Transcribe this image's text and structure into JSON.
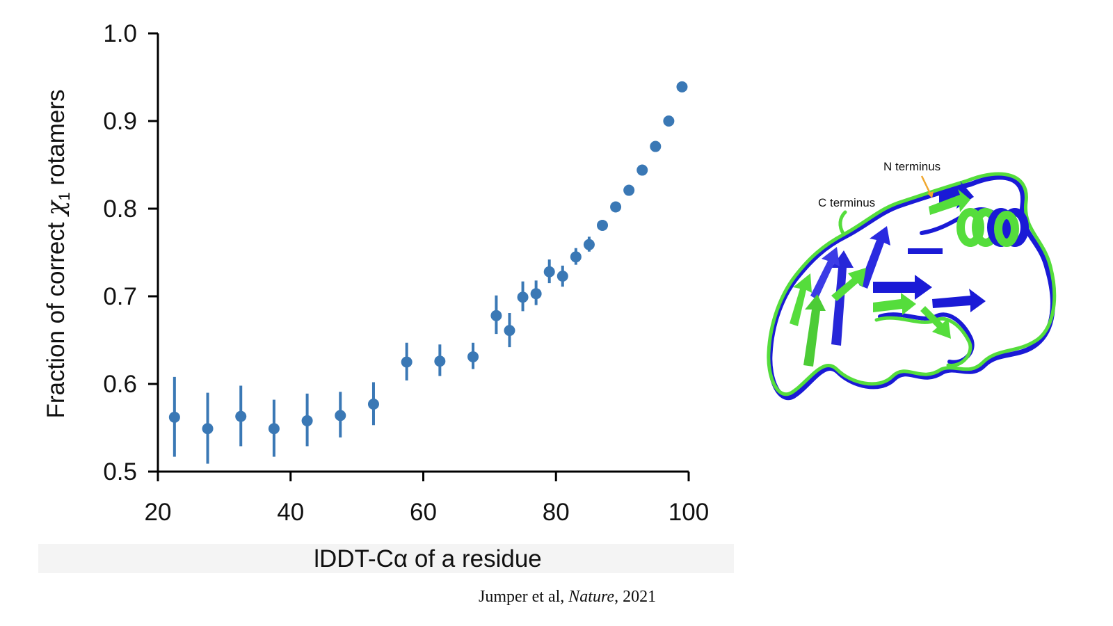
{
  "chart_data": {
    "type": "scatter",
    "xlabel_parts": [
      "lDDT-C",
      "α",
      " of a residue"
    ],
    "ylabel_parts": [
      "Fraction of correct ",
      "χ",
      "1",
      " rotamers"
    ],
    "xlim": [
      20,
      100
    ],
    "ylim": [
      0.5,
      1.0
    ],
    "xticks": [
      "20",
      "40",
      "60",
      "80",
      "100"
    ],
    "yticks": [
      "0.5",
      "0.6",
      "0.7",
      "0.8",
      "0.9",
      "1.0"
    ],
    "xtick_values": [
      20,
      40,
      60,
      80,
      100
    ],
    "ytick_values": [
      0.5,
      0.6,
      0.7,
      0.8,
      0.9,
      1.0
    ],
    "grid": false,
    "marker_color": "#3a78b5",
    "points": [
      {
        "x": 22.5,
        "y": 0.562,
        "lo": 0.517,
        "hi": 0.608
      },
      {
        "x": 27.5,
        "y": 0.549,
        "lo": 0.509,
        "hi": 0.59
      },
      {
        "x": 32.5,
        "y": 0.563,
        "lo": 0.529,
        "hi": 0.598
      },
      {
        "x": 37.5,
        "y": 0.549,
        "lo": 0.517,
        "hi": 0.582
      },
      {
        "x": 42.5,
        "y": 0.558,
        "lo": 0.529,
        "hi": 0.589
      },
      {
        "x": 47.5,
        "y": 0.564,
        "lo": 0.539,
        "hi": 0.591
      },
      {
        "x": 52.5,
        "y": 0.577,
        "lo": 0.553,
        "hi": 0.602
      },
      {
        "x": 57.5,
        "y": 0.625,
        "lo": 0.604,
        "hi": 0.647
      },
      {
        "x": 62.5,
        "y": 0.626,
        "lo": 0.609,
        "hi": 0.645
      },
      {
        "x": 67.5,
        "y": 0.631,
        "lo": 0.617,
        "hi": 0.647
      },
      {
        "x": 71.0,
        "y": 0.678,
        "lo": 0.657,
        "hi": 0.701
      },
      {
        "x": 73.0,
        "y": 0.661,
        "lo": 0.642,
        "hi": 0.681
      },
      {
        "x": 75.0,
        "y": 0.699,
        "lo": 0.683,
        "hi": 0.717
      },
      {
        "x": 77.0,
        "y": 0.703,
        "lo": 0.69,
        "hi": 0.718
      },
      {
        "x": 79.0,
        "y": 0.728,
        "lo": 0.715,
        "hi": 0.742
      },
      {
        "x": 81.0,
        "y": 0.723,
        "lo": 0.711,
        "hi": 0.735
      },
      {
        "x": 83.0,
        "y": 0.745,
        "lo": 0.736,
        "hi": 0.755
      },
      {
        "x": 85.0,
        "y": 0.759,
        "lo": 0.751,
        "hi": 0.768
      },
      {
        "x": 87.0,
        "y": 0.781,
        "lo": 0.775,
        "hi": 0.787
      },
      {
        "x": 89.0,
        "y": 0.802,
        "lo": 0.798,
        "hi": 0.807
      },
      {
        "x": 91.0,
        "y": 0.821,
        "lo": 0.817,
        "hi": 0.825
      },
      {
        "x": 93.0,
        "y": 0.844,
        "lo": 0.841,
        "hi": 0.847
      },
      {
        "x": 95.0,
        "y": 0.871,
        "lo": 0.868,
        "hi": 0.874
      },
      {
        "x": 97.0,
        "y": 0.9,
        "lo": 0.898,
        "hi": 0.903
      },
      {
        "x": 99.0,
        "y": 0.939,
        "lo": 0.937,
        "hi": 0.941
      }
    ]
  },
  "structure_figure": {
    "label_n_terminus": "N terminus",
    "label_c_terminus": "C terminus",
    "colors": {
      "prediction": "#55dd3c",
      "experiment": "#1a1ad6",
      "arrow": "#f0a830"
    }
  },
  "citation": {
    "authors": "Jumper et al, ",
    "journal": "Nature",
    "year": ", 2021"
  }
}
